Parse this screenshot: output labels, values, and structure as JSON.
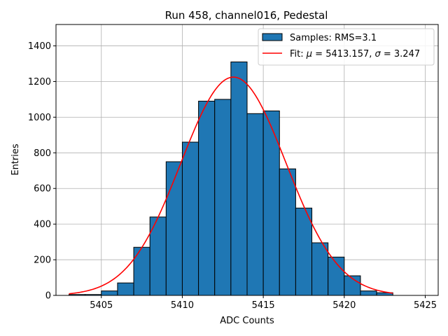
{
  "chart_data": {
    "type": "bar",
    "title": "Run 458, channel016, Pedestal",
    "xlabel": "ADC Counts",
    "ylabel": "Entries",
    "xlim": [
      5402.2,
      5425.8
    ],
    "ylim": [
      0,
      1520
    ],
    "xticks": [
      5405,
      5410,
      5415,
      5420,
      5425
    ],
    "yticks": [
      0,
      200,
      400,
      600,
      800,
      1000,
      1200,
      1400
    ],
    "grid": true,
    "legend_position": "top-right",
    "bar_color": "#1f77b4",
    "fit_color": "#ff0000",
    "bins": {
      "left_edges": [
        5403,
        5404,
        5405,
        5406,
        5407,
        5408,
        5409,
        5410,
        5411,
        5412,
        5413,
        5414,
        5415,
        5416,
        5417,
        5418,
        5419,
        5420,
        5421,
        5422
      ],
      "width": 1,
      "counts": [
        5,
        5,
        25,
        70,
        270,
        440,
        750,
        860,
        1090,
        1100,
        1310,
        1020,
        1035,
        710,
        490,
        295,
        215,
        110,
        25,
        15
      ]
    },
    "series": [
      {
        "name": "Samples: RMS=3.1",
        "kind": "histogram"
      },
      {
        "name": "Fit",
        "kind": "gaussian",
        "mu": 5413.157,
        "sigma": 3.247,
        "amplitude": 1225,
        "x_range": [
          5403,
          5423
        ]
      }
    ],
    "legend": {
      "samples_label": "Samples: RMS=3.1",
      "fit_prefix": "Fit: ",
      "fit_mu_text": " = 5413.157, ",
      "fit_sigma_text": " = 3.247"
    }
  }
}
